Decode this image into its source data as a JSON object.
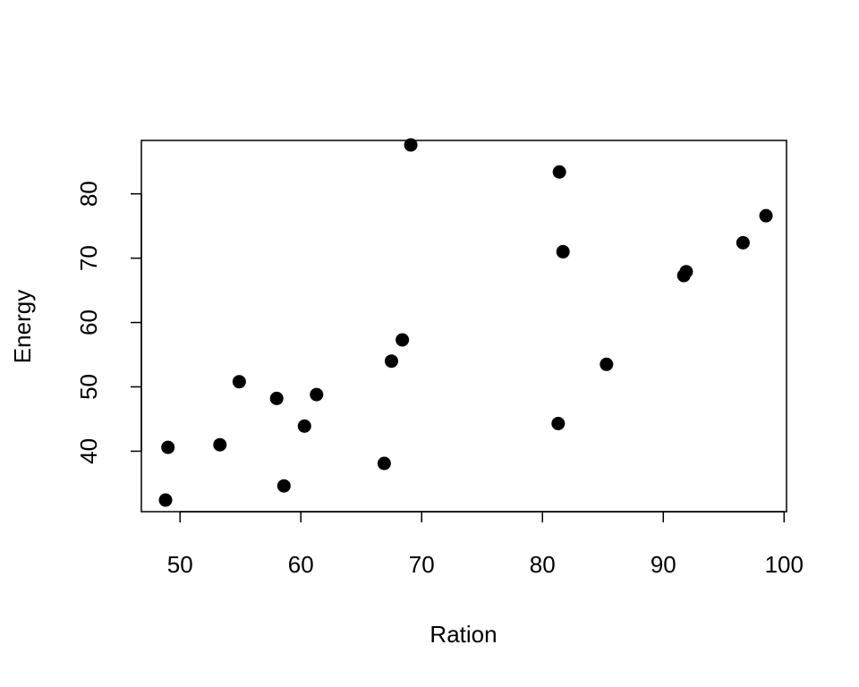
{
  "chart_data": {
    "type": "scatter",
    "title": "",
    "xlabel": "Ration",
    "ylabel": "Energy",
    "xlim": [
      46.8,
      100.2
    ],
    "ylim": [
      30.6,
      88.3
    ],
    "x_ticks": [
      50,
      60,
      70,
      80,
      90,
      100
    ],
    "y_ticks": [
      40,
      50,
      60,
      70,
      80
    ],
    "grid": false,
    "legend": "none",
    "point_color": "#000000",
    "points": [
      {
        "x": 48.8,
        "y": 32.4
      },
      {
        "x": 49.0,
        "y": 40.6
      },
      {
        "x": 53.3,
        "y": 41.0
      },
      {
        "x": 54.9,
        "y": 50.8
      },
      {
        "x": 58.0,
        "y": 48.2
      },
      {
        "x": 58.6,
        "y": 34.6
      },
      {
        "x": 60.3,
        "y": 43.9
      },
      {
        "x": 61.3,
        "y": 48.8
      },
      {
        "x": 66.9,
        "y": 38.1
      },
      {
        "x": 67.5,
        "y": 54.0
      },
      {
        "x": 68.4,
        "y": 57.3
      },
      {
        "x": 69.1,
        "y": 87.6
      },
      {
        "x": 81.3,
        "y": 44.3
      },
      {
        "x": 81.4,
        "y": 83.4
      },
      {
        "x": 81.7,
        "y": 71.0
      },
      {
        "x": 85.3,
        "y": 53.5
      },
      {
        "x": 91.7,
        "y": 67.3
      },
      {
        "x": 91.9,
        "y": 67.9
      },
      {
        "x": 96.6,
        "y": 72.4
      },
      {
        "x": 98.5,
        "y": 76.6
      }
    ]
  }
}
